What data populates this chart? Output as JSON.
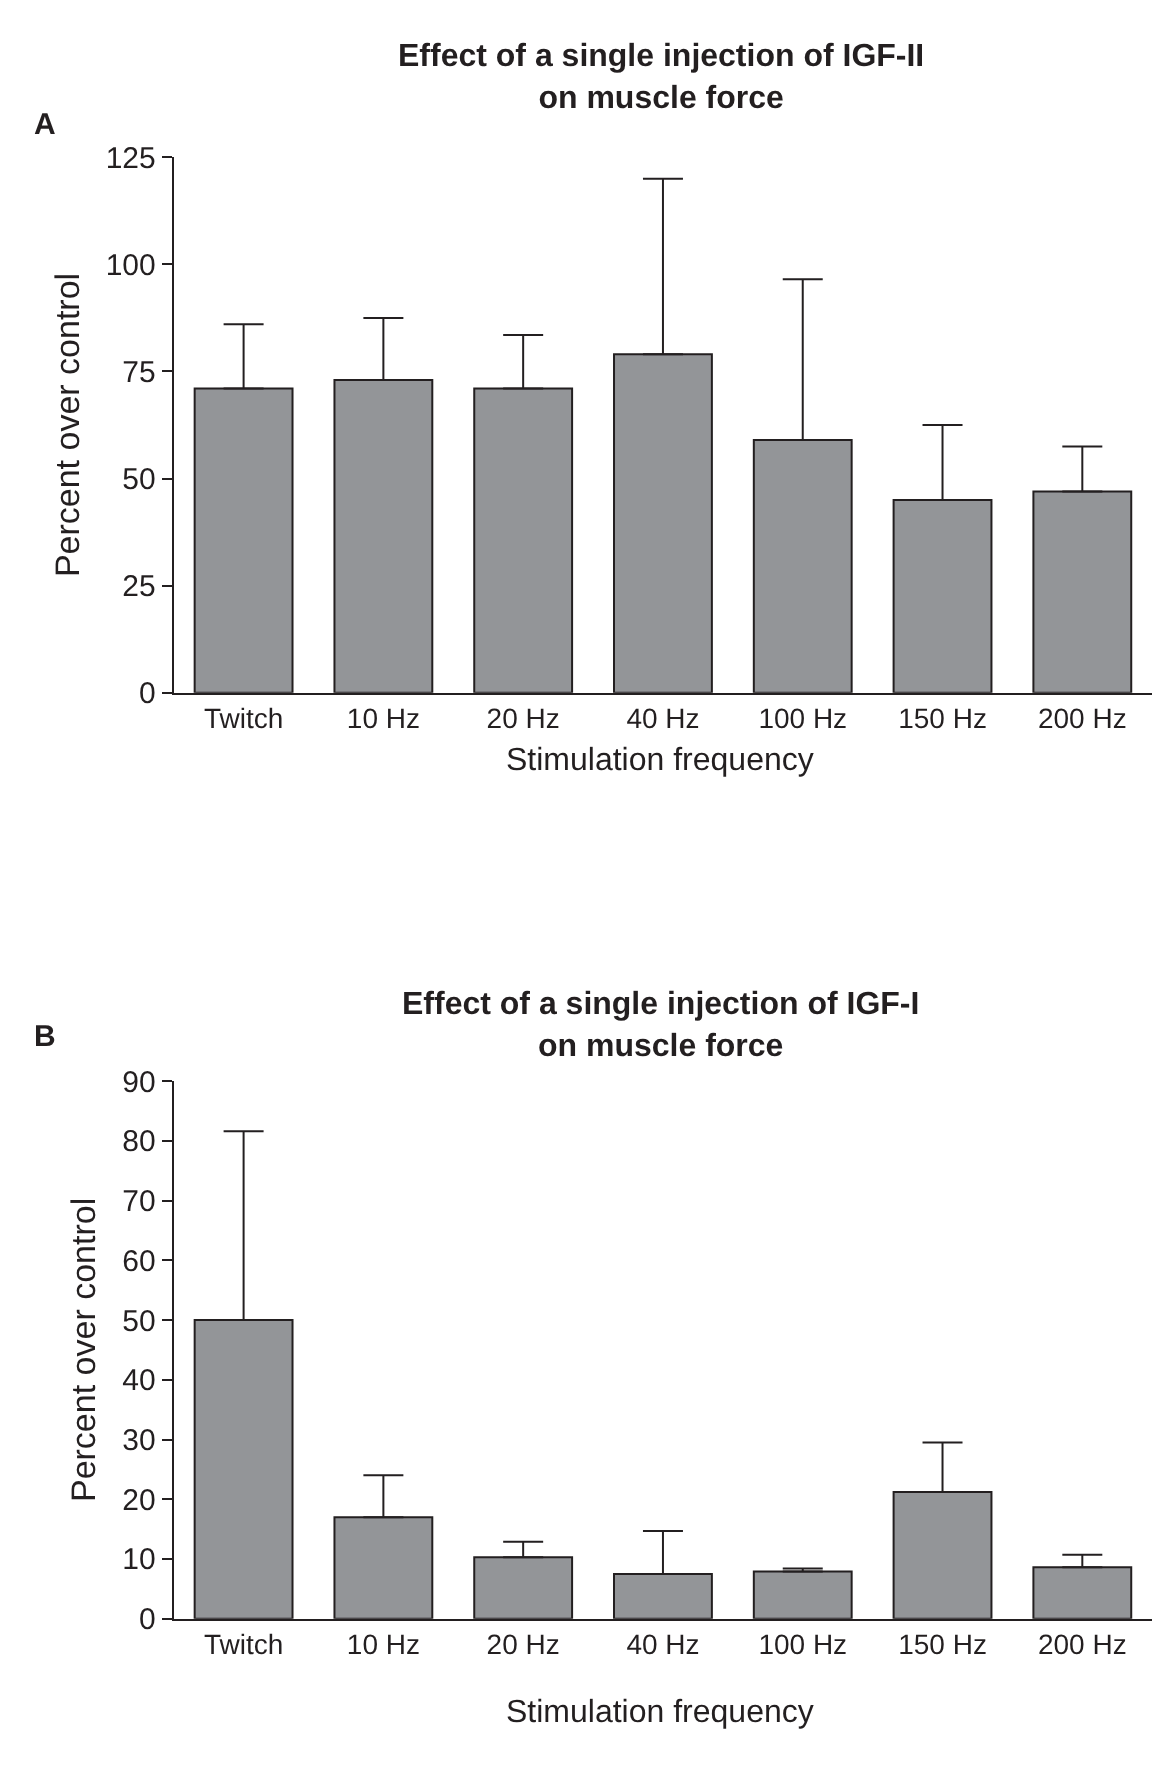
{
  "chart_data": [
    {
      "type": "bar",
      "title": "Effect of a single injection of IGF-II\non muscle force",
      "xlabel": "Stimulation frequency",
      "ylabel": "Percent over control",
      "annotations": [
        "A"
      ],
      "categories": [
        "Twitch",
        "10 Hz",
        "20 Hz",
        "40 Hz",
        "100 Hz",
        "150 Hz",
        "200 Hz"
      ],
      "values": [
        71,
        73,
        71,
        79,
        59,
        45,
        47
      ],
      "errors": [
        [
          71,
          86
        ],
        [
          73,
          87.5
        ],
        [
          71,
          83.5
        ],
        [
          79,
          120
        ],
        [
          59,
          96.5
        ],
        [
          45,
          62.5
        ],
        [
          47,
          57.5
        ]
      ],
      "color": "#939598",
      "ylim": [
        0,
        125
      ],
      "yticks": [
        0,
        25,
        50,
        75,
        100,
        125
      ]
    },
    {
      "type": "bar",
      "title": "Effect of a single injection of IGF-I\non muscle force",
      "xlabel": "Stimulation frequency",
      "ylabel": "Percent over control",
      "annotations": [
        "B"
      ],
      "categories": [
        "Twitch",
        "10 Hz",
        "20 Hz",
        "40 Hz",
        "100 Hz",
        "150 Hz",
        "200 Hz"
      ],
      "values": [
        50,
        17,
        10.3,
        7.5,
        7.9,
        21.2,
        8.6
      ],
      "errors": [
        [
          50,
          81.6
        ],
        [
          17,
          24
        ],
        [
          10.3,
          12.9
        ],
        [
          7.5,
          14.7
        ],
        [
          7.9,
          8.4
        ],
        [
          21.2,
          29.5
        ],
        [
          8.6,
          10.7
        ]
      ],
      "color": "#939598",
      "ylim": [
        0,
        90
      ],
      "yticks": [
        0,
        10,
        20,
        30,
        40,
        50,
        60,
        70,
        80,
        90
      ]
    }
  ]
}
